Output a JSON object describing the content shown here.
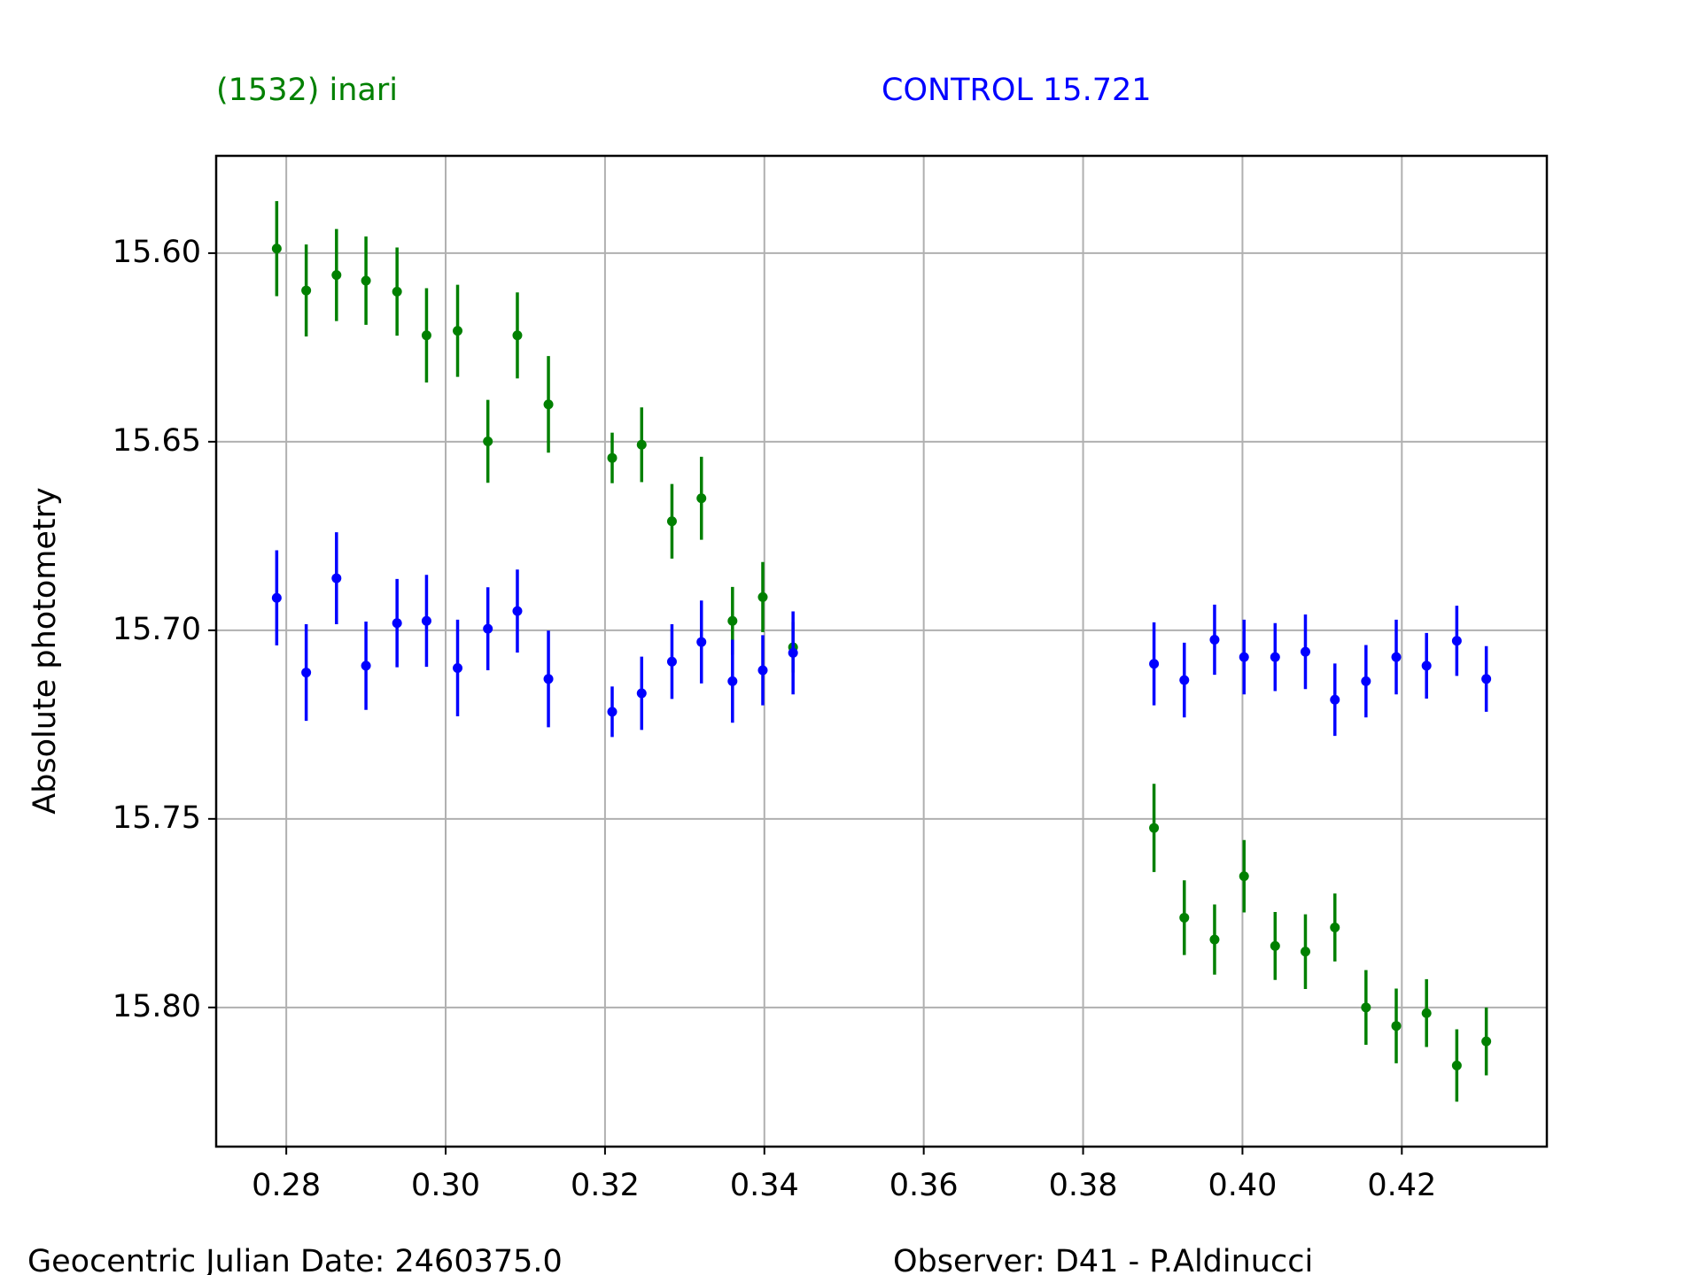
{
  "chart_data": {
    "type": "errorbar",
    "title": "(1532) inari",
    "subtitle": "CONTROL 15.721",
    "ylabel": "Absolute photometry",
    "footer_left": "Geocentric Julian Date: 2460375.0",
    "footer_right": "Observer: D41 - P.Aldinucci",
    "x": [
      0.2788,
      0.2825,
      0.2863,
      0.29,
      0.2939,
      0.2976,
      0.3015,
      0.3053,
      0.309,
      0.3129,
      0.3209,
      0.3246,
      0.3284,
      0.3321,
      0.336,
      0.3398,
      0.3436,
      0.3889,
      0.3927,
      0.3965,
      0.4002,
      0.4041,
      0.4079,
      0.4116,
      0.4155,
      0.4193,
      0.4231,
      0.4269,
      0.4306
    ],
    "series": [
      {
        "name": "(1532) inari",
        "color": "#008000",
        "values": [
          15.5988,
          15.6099,
          15.6058,
          15.6073,
          15.6102,
          15.6218,
          15.6206,
          15.6499,
          15.6218,
          15.6401,
          15.6543,
          15.6508,
          15.6711,
          15.665,
          15.6975,
          15.6912,
          15.7045,
          15.7524,
          15.7762,
          15.782,
          15.7652,
          15.7837,
          15.7852,
          15.7788,
          15.8,
          15.8049,
          15.8015,
          15.8154,
          15.809
        ],
        "errors": [
          0.0126,
          0.0122,
          0.0122,
          0.0117,
          0.0117,
          0.0125,
          0.0122,
          0.011,
          0.0114,
          0.0128,
          0.0067,
          0.0099,
          0.0099,
          0.011,
          0.009,
          0.0093,
          0.0067,
          0.0117,
          0.0099,
          0.0093,
          0.0096,
          0.009,
          0.0099,
          0.009,
          0.0099,
          0.0099,
          0.009,
          0.0096,
          0.009
        ]
      },
      {
        "name": "CONTROL 15.721",
        "color": "#0000ff",
        "values": [
          15.6914,
          15.7112,
          15.6862,
          15.7094,
          15.6981,
          15.6975,
          15.71,
          15.6996,
          15.6949,
          15.7129,
          15.7216,
          15.7167,
          15.7083,
          15.7031,
          15.7135,
          15.7106,
          15.706,
          15.7089,
          15.7132,
          15.7025,
          15.7071,
          15.7071,
          15.7057,
          15.7184,
          15.7135,
          15.7071,
          15.7094,
          15.7028,
          15.7129
        ],
        "errors": [
          0.0126,
          0.0128,
          0.0122,
          0.0117,
          0.0117,
          0.0122,
          0.0128,
          0.011,
          0.011,
          0.0128,
          0.0067,
          0.0097,
          0.0099,
          0.011,
          0.011,
          0.0093,
          0.011,
          0.011,
          0.0099,
          0.0093,
          0.0099,
          0.009,
          0.0099,
          0.0096,
          0.0096,
          0.0099,
          0.0087,
          0.0093,
          0.0087
        ]
      }
    ],
    "xlim": [
      0.2712,
      0.4382
    ],
    "ylim": [
      15.5742,
      15.8369
    ],
    "invert_y": true,
    "xticks": [
      0.28,
      {
        "value": 0.3,
        "label": "0.30"
      },
      0.32,
      0.34,
      0.36,
      0.38,
      {
        "value": 0.4,
        "label": "0.40"
      },
      0.42
    ],
    "yticks": [
      {
        "value": 15.6,
        "label": "15.60"
      },
      15.65,
      {
        "value": 15.7,
        "label": "15.70"
      },
      15.75,
      {
        "value": 15.8,
        "label": "15.80"
      }
    ],
    "grid": true
  }
}
